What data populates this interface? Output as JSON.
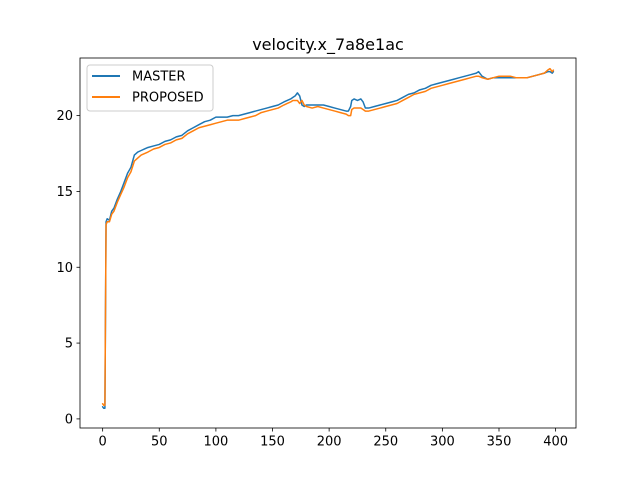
{
  "chart_data": {
    "type": "line",
    "title": "velocity.x_7a8e1ac",
    "xlabel": "",
    "ylabel": "",
    "xlim": [
      -20,
      418
    ],
    "ylim": [
      -0.6,
      23.8
    ],
    "xticks": [
      0,
      50,
      100,
      150,
      200,
      250,
      300,
      350,
      400
    ],
    "yticks": [
      0,
      5,
      10,
      15,
      20
    ],
    "grid": false,
    "legend_position": "upper-left",
    "series": [
      {
        "name": "MASTER",
        "color": "#1f77b4",
        "x": [
          0,
          1,
          2,
          3,
          4,
          6,
          8,
          10,
          13,
          16,
          19,
          22,
          25,
          28,
          31,
          34,
          37,
          40,
          45,
          50,
          55,
          60,
          65,
          70,
          75,
          80,
          85,
          90,
          95,
          100,
          105,
          110,
          115,
          120,
          125,
          130,
          135,
          140,
          145,
          150,
          155,
          160,
          163,
          166,
          168,
          170,
          172,
          174,
          176,
          178,
          180,
          185,
          190,
          195,
          200,
          205,
          210,
          215,
          217,
          219,
          220,
          222,
          225,
          228,
          230,
          232,
          235,
          240,
          245,
          250,
          255,
          260,
          265,
          270,
          275,
          280,
          285,
          290,
          295,
          300,
          305,
          310,
          315,
          320,
          325,
          330,
          332,
          335,
          340,
          345,
          350,
          355,
          360,
          365,
          370,
          375,
          380,
          385,
          390,
          393,
          395,
          397,
          398
        ],
        "y": [
          0.8,
          0.7,
          0.7,
          13.0,
          13.2,
          13.1,
          13.7,
          13.9,
          14.5,
          15.0,
          15.6,
          16.2,
          16.6,
          17.4,
          17.6,
          17.7,
          17.8,
          17.9,
          18.0,
          18.1,
          18.3,
          18.4,
          18.6,
          18.7,
          19.0,
          19.2,
          19.4,
          19.6,
          19.7,
          19.9,
          19.9,
          19.9,
          20.0,
          20.0,
          20.1,
          20.2,
          20.3,
          20.4,
          20.5,
          20.6,
          20.7,
          20.9,
          21.0,
          21.1,
          21.2,
          21.3,
          21.5,
          21.3,
          20.7,
          20.6,
          20.7,
          20.7,
          20.7,
          20.7,
          20.6,
          20.5,
          20.4,
          20.3,
          20.3,
          20.6,
          21.0,
          21.1,
          21.0,
          21.1,
          20.9,
          20.5,
          20.5,
          20.6,
          20.7,
          20.8,
          20.9,
          21.0,
          21.2,
          21.4,
          21.5,
          21.7,
          21.8,
          22.0,
          22.1,
          22.2,
          22.3,
          22.4,
          22.5,
          22.6,
          22.7,
          22.8,
          22.9,
          22.6,
          22.4,
          22.5,
          22.5,
          22.5,
          22.5,
          22.5,
          22.5,
          22.5,
          22.6,
          22.7,
          22.8,
          22.9,
          22.9,
          22.8,
          22.9
        ]
      },
      {
        "name": "PROPOSED",
        "color": "#ff7f0e",
        "x": [
          0,
          1,
          2,
          3,
          4,
          6,
          8,
          10,
          13,
          16,
          19,
          22,
          25,
          28,
          31,
          34,
          37,
          40,
          45,
          50,
          55,
          60,
          65,
          70,
          75,
          80,
          85,
          90,
          95,
          100,
          105,
          110,
          115,
          120,
          125,
          130,
          135,
          140,
          145,
          150,
          155,
          160,
          163,
          166,
          168,
          170,
          172,
          174,
          176,
          178,
          180,
          185,
          190,
          195,
          200,
          205,
          210,
          215,
          217,
          219,
          220,
          222,
          225,
          228,
          230,
          232,
          235,
          240,
          245,
          250,
          255,
          260,
          265,
          270,
          275,
          280,
          285,
          290,
          295,
          300,
          305,
          310,
          315,
          320,
          325,
          330,
          332,
          335,
          340,
          345,
          350,
          355,
          360,
          365,
          370,
          375,
          380,
          385,
          390,
          393,
          395,
          397,
          398
        ],
        "y": [
          1.0,
          0.9,
          0.9,
          12.8,
          13.0,
          13.0,
          13.5,
          13.7,
          14.3,
          14.8,
          15.3,
          15.9,
          16.3,
          17.0,
          17.2,
          17.4,
          17.5,
          17.6,
          17.8,
          17.9,
          18.1,
          18.2,
          18.4,
          18.5,
          18.8,
          19.0,
          19.2,
          19.3,
          19.4,
          19.5,
          19.6,
          19.7,
          19.7,
          19.7,
          19.8,
          19.9,
          20.0,
          20.2,
          20.3,
          20.4,
          20.5,
          20.7,
          20.8,
          20.9,
          21.0,
          21.0,
          21.0,
          20.8,
          21.0,
          20.7,
          20.6,
          20.5,
          20.6,
          20.5,
          20.4,
          20.3,
          20.2,
          20.1,
          20.0,
          20.0,
          20.4,
          20.5,
          20.5,
          20.5,
          20.4,
          20.3,
          20.3,
          20.4,
          20.5,
          20.6,
          20.7,
          20.8,
          21.0,
          21.2,
          21.4,
          21.5,
          21.6,
          21.8,
          21.9,
          22.0,
          22.1,
          22.2,
          22.3,
          22.4,
          22.5,
          22.6,
          22.6,
          22.5,
          22.4,
          22.5,
          22.6,
          22.6,
          22.6,
          22.5,
          22.5,
          22.5,
          22.6,
          22.7,
          22.8,
          23.0,
          23.1,
          22.9,
          23.0
        ]
      }
    ]
  }
}
